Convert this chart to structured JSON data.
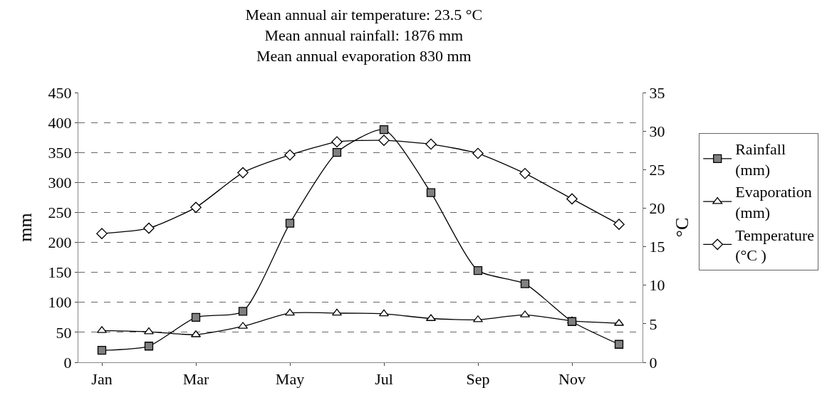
{
  "chart_data": {
    "type": "line",
    "title": "Mean annual air temperature: 23.5 °C\nMean annual rainfall: 1876 mm\nMean annual evaporation 830 mm",
    "ylabel": "mm",
    "y2label": "°C",
    "categories": [
      "Jan",
      null,
      "Mar",
      null,
      "May",
      null,
      "Jul",
      null,
      "Sep",
      null,
      "Nov",
      null
    ],
    "series": [
      {
        "name": "Rainfall (mm)",
        "color": "#000000",
        "marker": "square",
        "values": [
          20,
          27,
          75,
          85,
          232,
          350,
          388,
          283,
          153,
          131,
          68,
          30
        ]
      },
      {
        "name": "Evaporation (mm)",
        "color": "#000000",
        "marker": "triangle",
        "values": [
          53,
          51,
          46,
          60,
          82,
          82,
          81,
          73,
          71,
          79,
          69,
          65
        ]
      },
      {
        "name": "Temperature (°C )",
        "color": "#000000",
        "marker": "diamond",
        "axis": "y2",
        "values": [
          16.7,
          17.4,
          20.1,
          24.6,
          26.9,
          28.6,
          28.8,
          28.3,
          27.1,
          24.5,
          21.2,
          17.9
        ]
      }
    ],
    "ylim": [
      0,
      450
    ],
    "yticks": [
      0,
      50,
      100,
      150,
      200,
      250,
      300,
      350,
      400,
      450
    ],
    "y2lim": [
      0,
      35
    ],
    "y2ticks": [
      0,
      5,
      10,
      15,
      20,
      25,
      30,
      35
    ],
    "grid": "y",
    "legend": "right",
    "line_style": "solid"
  }
}
